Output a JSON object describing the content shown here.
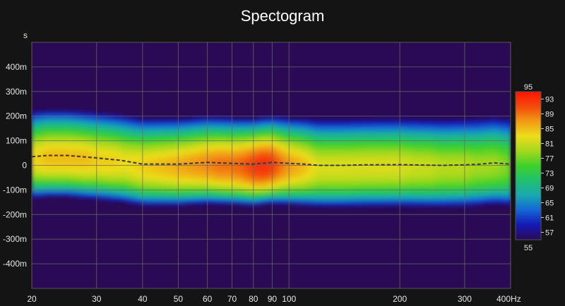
{
  "chart_data": {
    "type": "heatmap",
    "title": "Spectogram",
    "y_unit_label": "s",
    "x_unit_label": "Hz",
    "x_scale": "log",
    "xlim": [
      20,
      400
    ],
    "x_ticks": [
      20,
      30,
      40,
      50,
      60,
      70,
      80,
      90,
      100,
      200,
      300,
      400
    ],
    "x_tick_labels": [
      "20",
      "30",
      "40",
      "50",
      "60",
      "70",
      "80",
      "90",
      "100",
      "200",
      "300",
      "400Hz"
    ],
    "ylim": [
      -0.5,
      0.5
    ],
    "y_ticks": [
      0.4,
      0.3,
      0.2,
      0.1,
      0,
      -0.1,
      -0.2,
      -0.3,
      -0.4
    ],
    "y_tick_labels": [
      "400m",
      "300m",
      "200m",
      "100m",
      "0",
      "-100m",
      "-200m",
      "-300m",
      "-400m"
    ],
    "grid": true,
    "colorbar": {
      "min": 55,
      "max": 95,
      "tick_values": [
        93,
        89,
        85,
        81,
        77,
        73,
        69,
        65,
        61,
        57
      ],
      "min_label": "55",
      "max_label": "95"
    },
    "background_color": "#2b0a55",
    "colormap": [
      "#2b0a55",
      "#1418b4",
      "#1565d6",
      "#19a8b0",
      "#20c070",
      "#3fd02a",
      "#a5d81e",
      "#ecdd1a",
      "#f29a14",
      "#f24a0c",
      "#ff1400"
    ],
    "peak_level_by_frequency": {
      "freq": [
        20,
        22,
        25,
        28,
        30,
        33,
        36,
        40,
        45,
        50,
        55,
        60,
        65,
        70,
        75,
        80,
        85,
        90,
        95,
        100,
        110,
        120,
        130,
        140,
        150,
        160,
        170,
        180,
        190,
        200,
        220,
        240,
        260,
        280,
        300,
        320,
        340,
        360,
        380,
        400
      ],
      "level": [
        83,
        85,
        85,
        85,
        84,
        84,
        83,
        84,
        85,
        86,
        87,
        88,
        89,
        89,
        90,
        92,
        93,
        92,
        89,
        87,
        85,
        82,
        82,
        82,
        82,
        82,
        82,
        82,
        82,
        82,
        81,
        81,
        80,
        80,
        80,
        79,
        79,
        79,
        78,
        77
      ]
    },
    "ridge_line": {
      "style": "dashed",
      "freq": [
        20,
        22,
        25,
        30,
        35,
        40,
        50,
        60,
        70,
        80,
        90,
        100,
        110,
        120,
        140,
        160,
        200,
        260,
        300,
        330,
        360,
        400
      ],
      "time": [
        0.035,
        0.04,
        0.04,
        0.03,
        0.02,
        0.005,
        0.005,
        0.012,
        0.008,
        0.005,
        0.012,
        0.008,
        0.005,
        0.0,
        0.0,
        0.002,
        0.003,
        0.0,
        0.002,
        0.005,
        0.01,
        0.005
      ]
    }
  }
}
